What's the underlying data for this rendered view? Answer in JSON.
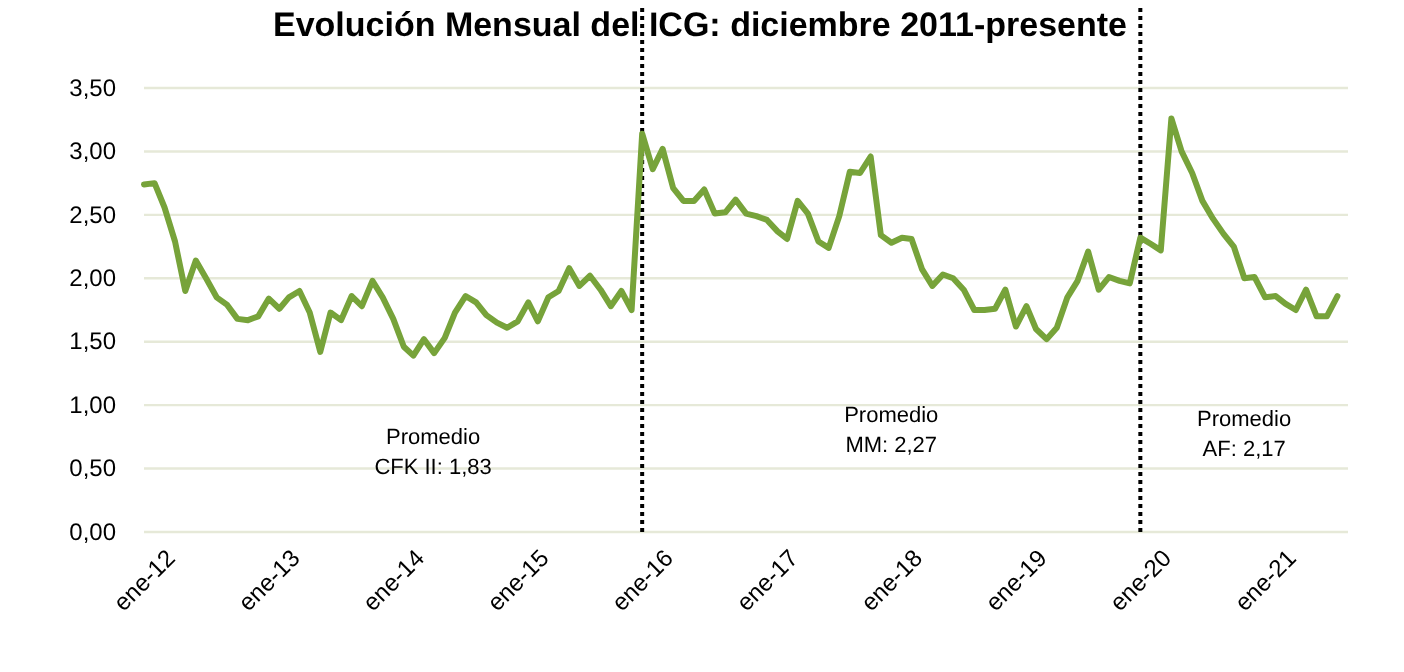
{
  "chart_data": {
    "type": "line",
    "title": "Evolución Mensual del ICG: diciembre 2011-presente",
    "x": [
      "2012-01",
      "2012-02",
      "2012-03",
      "2012-04",
      "2012-05",
      "2012-06",
      "2012-07",
      "2012-08",
      "2012-09",
      "2012-10",
      "2012-11",
      "2012-12",
      "2013-01",
      "2013-02",
      "2013-03",
      "2013-04",
      "2013-05",
      "2013-06",
      "2013-07",
      "2013-08",
      "2013-09",
      "2013-10",
      "2013-11",
      "2013-12",
      "2014-01",
      "2014-02",
      "2014-03",
      "2014-04",
      "2014-05",
      "2014-06",
      "2014-07",
      "2014-08",
      "2014-09",
      "2014-10",
      "2014-11",
      "2014-12",
      "2015-01",
      "2015-02",
      "2015-03",
      "2015-04",
      "2015-05",
      "2015-06",
      "2015-07",
      "2015-08",
      "2015-09",
      "2015-10",
      "2015-11",
      "2015-12",
      "2016-01",
      "2016-02",
      "2016-03",
      "2016-04",
      "2016-05",
      "2016-06",
      "2016-07",
      "2016-08",
      "2016-09",
      "2016-10",
      "2016-11",
      "2016-12",
      "2017-01",
      "2017-02",
      "2017-03",
      "2017-04",
      "2017-05",
      "2017-06",
      "2017-07",
      "2017-08",
      "2017-09",
      "2017-10",
      "2017-11",
      "2017-12",
      "2018-01",
      "2018-02",
      "2018-03",
      "2018-04",
      "2018-05",
      "2018-06",
      "2018-07",
      "2018-08",
      "2018-09",
      "2018-10",
      "2018-11",
      "2018-12",
      "2019-01",
      "2019-02",
      "2019-03",
      "2019-04",
      "2019-05",
      "2019-06",
      "2019-07",
      "2019-08",
      "2019-09",
      "2019-10",
      "2019-11",
      "2019-12",
      "2020-01",
      "2020-02",
      "2020-03",
      "2020-04",
      "2020-05",
      "2020-06",
      "2020-07",
      "2020-08",
      "2020-09",
      "2020-10",
      "2020-11",
      "2020-12",
      "2021-01",
      "2021-02",
      "2021-03",
      "2021-04",
      "2021-05",
      "2021-06",
      "2021-07",
      "2021-08"
    ],
    "series": [
      {
        "color": "#77a33a",
        "values": [
          2.74,
          2.75,
          2.56,
          2.29,
          1.9,
          2.14,
          2.0,
          1.85,
          1.79,
          1.68,
          1.67,
          1.7,
          1.84,
          1.76,
          1.85,
          1.9,
          1.73,
          1.42,
          1.73,
          1.67,
          1.86,
          1.78,
          1.98,
          1.85,
          1.68,
          1.46,
          1.39,
          1.52,
          1.41,
          1.53,
          1.73,
          1.86,
          1.81,
          1.71,
          1.65,
          1.61,
          1.66,
          1.81,
          1.66,
          1.85,
          1.9,
          2.08,
          1.94,
          2.02,
          1.91,
          1.78,
          1.9,
          1.75,
          3.14,
          2.86,
          3.02,
          2.71,
          2.61,
          2.61,
          2.7,
          2.51,
          2.52,
          2.62,
          2.51,
          2.49,
          2.46,
          2.37,
          2.31,
          2.61,
          2.51,
          2.29,
          2.24,
          2.49,
          2.84,
          2.83,
          2.96,
          2.34,
          2.28,
          2.32,
          2.31,
          2.07,
          1.94,
          2.03,
          2.0,
          1.91,
          1.75,
          1.75,
          1.76,
          1.91,
          1.62,
          1.78,
          1.6,
          1.52,
          1.61,
          1.85,
          1.98,
          2.21,
          1.91,
          2.01,
          1.98,
          1.96,
          2.32,
          2.27,
          2.22,
          3.26,
          3.0,
          2.83,
          2.61,
          2.47,
          2.35,
          2.25,
          2.0,
          2.01,
          1.85,
          1.86,
          1.8,
          1.75,
          1.91,
          1.7,
          1.7,
          1.86
        ]
      }
    ],
    "xlim": [
      "2012-01",
      "2021-09"
    ],
    "xticks": [
      {
        "value": "2012-01",
        "label": "ene-12"
      },
      {
        "value": "2013-01",
        "label": "ene-13"
      },
      {
        "value": "2014-01",
        "label": "ene-14"
      },
      {
        "value": "2015-01",
        "label": "ene-15"
      },
      {
        "value": "2016-01",
        "label": "ene-16"
      },
      {
        "value": "2017-01",
        "label": "ene-17"
      },
      {
        "value": "2018-01",
        "label": "ene-18"
      },
      {
        "value": "2019-01",
        "label": "ene-19"
      },
      {
        "value": "2020-01",
        "label": "ene-20"
      },
      {
        "value": "2021-01",
        "label": "ene-21"
      }
    ],
    "ylim": [
      0,
      3.5
    ],
    "yticks": [
      {
        "value": 0,
        "label": "0,00"
      },
      {
        "value": 0.5,
        "label": "0,50"
      },
      {
        "value": 1,
        "label": "1,00"
      },
      {
        "value": 1.5,
        "label": "1,50"
      },
      {
        "value": 2,
        "label": "2,00"
      },
      {
        "value": 2.5,
        "label": "2,50"
      },
      {
        "value": 3,
        "label": "3,00"
      },
      {
        "value": 3.5,
        "label": "3,50"
      }
    ],
    "grid": "y",
    "marker": "none",
    "line_style": "solid",
    "ref_lines": [
      {
        "axis": "x",
        "value": "2016-01",
        "label": null,
        "color": "#000000",
        "line_style": "dotted"
      },
      {
        "axis": "x",
        "value": "2020-01",
        "label": null,
        "color": "#000000",
        "line_style": "dotted"
      }
    ],
    "annotations": [
      "Promedio\nCFK II: 1,83",
      "Promedio\nMM: 2,27",
      "Promedio\nAF: 2,17"
    ]
  }
}
